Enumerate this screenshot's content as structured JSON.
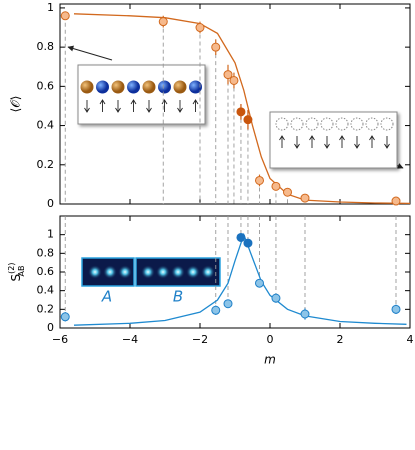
{
  "chart_data": [
    {
      "type": "scatter",
      "y_label": "⟨𝒪⟩",
      "xlim": [
        -6,
        4
      ],
      "ylim": [
        0,
        1.02
      ],
      "xticks": [
        -6,
        -4,
        -2,
        0,
        2,
        4
      ],
      "yticks": [
        0,
        0.2,
        0.4,
        0.6,
        0.8,
        1
      ],
      "series": [
        {
          "color": "#f6b98c",
          "edge": "#d2691e",
          "x": [
            -5.85,
            -3.05,
            -2,
            -1.55,
            -1.2,
            -1.03,
            -0.3,
            0.17,
            0.5,
            1,
            3.6
          ],
          "values": [
            0.96,
            0.93,
            0.9,
            0.8,
            0.66,
            0.63,
            0.12,
            0.09,
            0.06,
            0.03,
            0.015
          ],
          "errors": [
            0.02,
            0.03,
            0.03,
            0.04,
            0.05,
            0.04,
            0.03,
            0.02,
            0.02,
            0.02,
            0.01
          ]
        },
        {
          "color": "#c9560e",
          "edge": "#c9560e",
          "x": [
            -0.83,
            -0.63
          ],
          "values": [
            0.47,
            0.43
          ],
          "errors": [
            0.04,
            0.05
          ]
        }
      ],
      "fit": {
        "color": "#d2691e",
        "x": [
          -5.6,
          -4,
          -3,
          -2,
          -1.5,
          -1,
          -0.75,
          -0.5,
          -0.25,
          0,
          0.5,
          1,
          2,
          3,
          4
        ],
        "values": [
          0.97,
          0.96,
          0.95,
          0.92,
          0.87,
          0.72,
          0.58,
          0.4,
          0.24,
          0.13,
          0.05,
          0.02,
          0.01,
          0.005,
          0.003
        ]
      }
    },
    {
      "type": "scatter",
      "x_label": "m",
      "y_label": {
        "base": "S",
        "sub": "AB",
        "sup": "(2)"
      },
      "xlim": [
        -6,
        4
      ],
      "ylim": [
        0,
        1.2
      ],
      "xticks": [
        {
          "value": -6,
          "label": "−6"
        },
        {
          "value": -4,
          "label": "−4"
        },
        {
          "value": -2,
          "label": "−2"
        },
        0,
        2,
        4
      ],
      "yticks": [
        0,
        0.2,
        0.4,
        0.6,
        0.8,
        1
      ],
      "series": [
        {
          "color": "#8cc4e8",
          "edge": "#1f80c8",
          "x": [
            -5.85,
            -1.55,
            -1.2,
            -0.3,
            0.17,
            1,
            3.6
          ],
          "values": [
            0.12,
            0.19,
            0.26,
            0.48,
            0.32,
            0.15,
            0.2
          ],
          "errors": [
            0.05,
            0.05,
            0.04,
            0.04,
            0.05,
            0.06,
            0.05
          ]
        },
        {
          "color": "#1a72bf",
          "edge": "#1a72bf",
          "x": [
            -0.83,
            -0.63
          ],
          "values": [
            0.97,
            0.91
          ],
          "errors": [
            0.03,
            0.03
          ]
        }
      ],
      "fit": {
        "color": "#1f8ad0",
        "x": [
          -5.6,
          -4,
          -3,
          -2,
          -1.5,
          -1.2,
          -1,
          -0.75,
          -0.5,
          -0.25,
          0,
          0.5,
          1,
          2,
          3,
          3.9
        ],
        "values": [
          0.03,
          0.05,
          0.08,
          0.17,
          0.3,
          0.48,
          0.72,
          1.0,
          0.75,
          0.5,
          0.35,
          0.2,
          0.13,
          0.07,
          0.05,
          0.04
        ]
      },
      "inset_labels": [
        "A",
        "B"
      ]
    }
  ]
}
